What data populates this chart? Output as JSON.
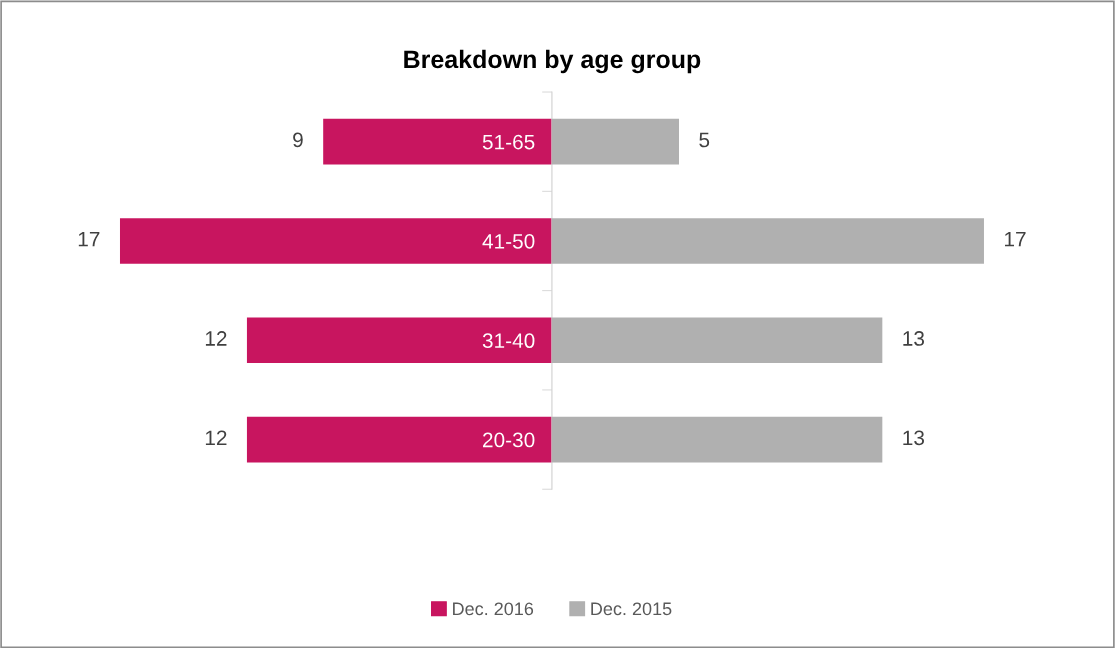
{
  "chart_data": [
    {
      "type": "bar",
      "orientation": "horizontal",
      "title": "Breakdown by age group",
      "categories": [
        "51-65",
        "41-50",
        "31-40",
        "20-30"
      ],
      "series": [
        {
          "name": "Dec. 2016",
          "color": "#c8155f",
          "values": [
            9,
            17,
            12,
            12
          ]
        }
      ],
      "xlim": [
        17,
        0
      ],
      "data_labels": true,
      "tick_labels": "y",
      "grid": false,
      "legend": "bottom"
    },
    {
      "type": "bar",
      "orientation": "horizontal",
      "categories": [
        null,
        null,
        null,
        null
      ],
      "series": [
        {
          "name": "Dec. 2015",
          "color": "#b0b0b0",
          "values": [
            5,
            17,
            13,
            13
          ]
        }
      ],
      "xlim": [
        0,
        17
      ],
      "data_labels": true,
      "tick_labels": false,
      "grid": false,
      "legend": "bottom"
    }
  ]
}
